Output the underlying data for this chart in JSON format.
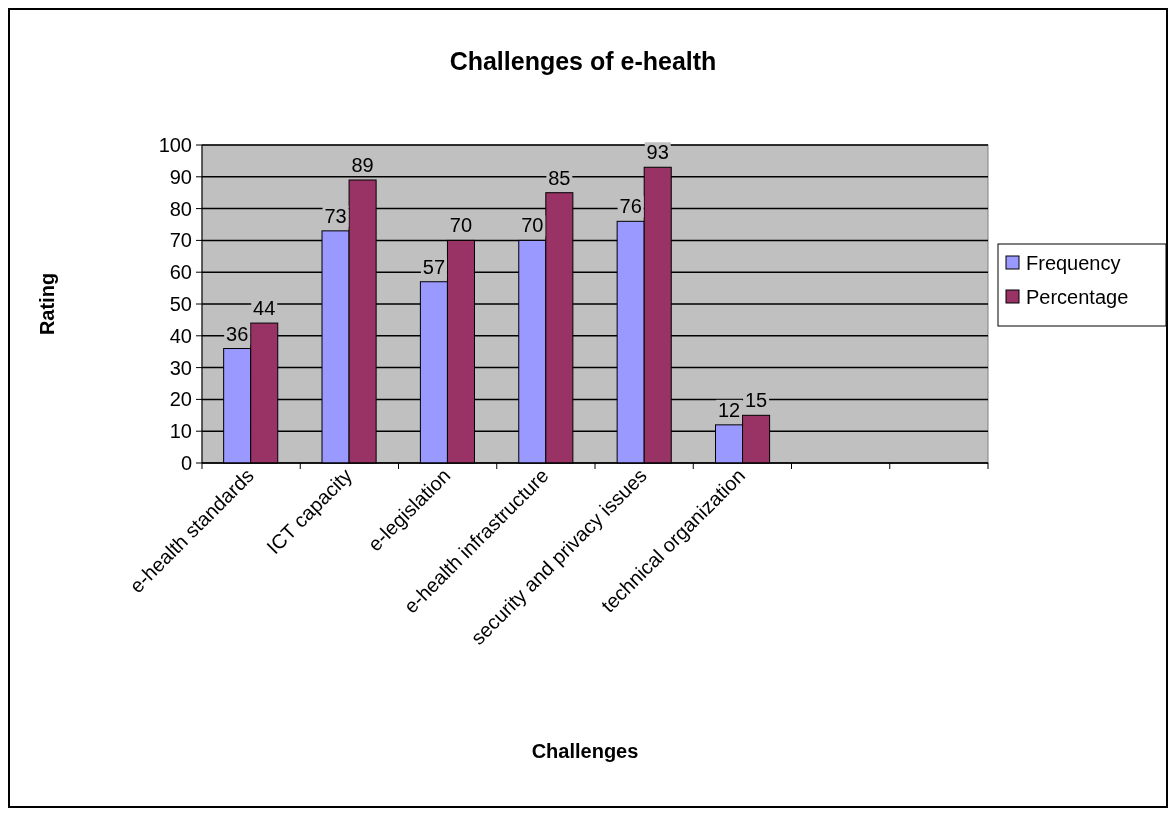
{
  "chart_data": {
    "type": "bar",
    "title": "Challenges of e-health",
    "xlabel": "Challenges",
    "ylabel": "Rating",
    "categories": [
      "e-health standards",
      "ICT capacity",
      "e-legislation",
      "e-health infrastructure",
      "security and privacy issues",
      "technical organization",
      null,
      null
    ],
    "series": [
      {
        "name": "Frequency",
        "color": "#9999ff",
        "values": [
          36,
          73,
          57,
          70,
          76,
          12,
          null,
          null
        ]
      },
      {
        "name": "Percentage",
        "color": "#993366",
        "values": [
          44,
          89,
          70,
          85,
          93,
          15,
          null,
          null
        ]
      }
    ],
    "ylim": [
      0,
      100
    ],
    "yticks": [
      0,
      10,
      20,
      30,
      40,
      50,
      60,
      70,
      80,
      90,
      100
    ],
    "grid": "y",
    "legend": "right",
    "data_labels": true
  }
}
